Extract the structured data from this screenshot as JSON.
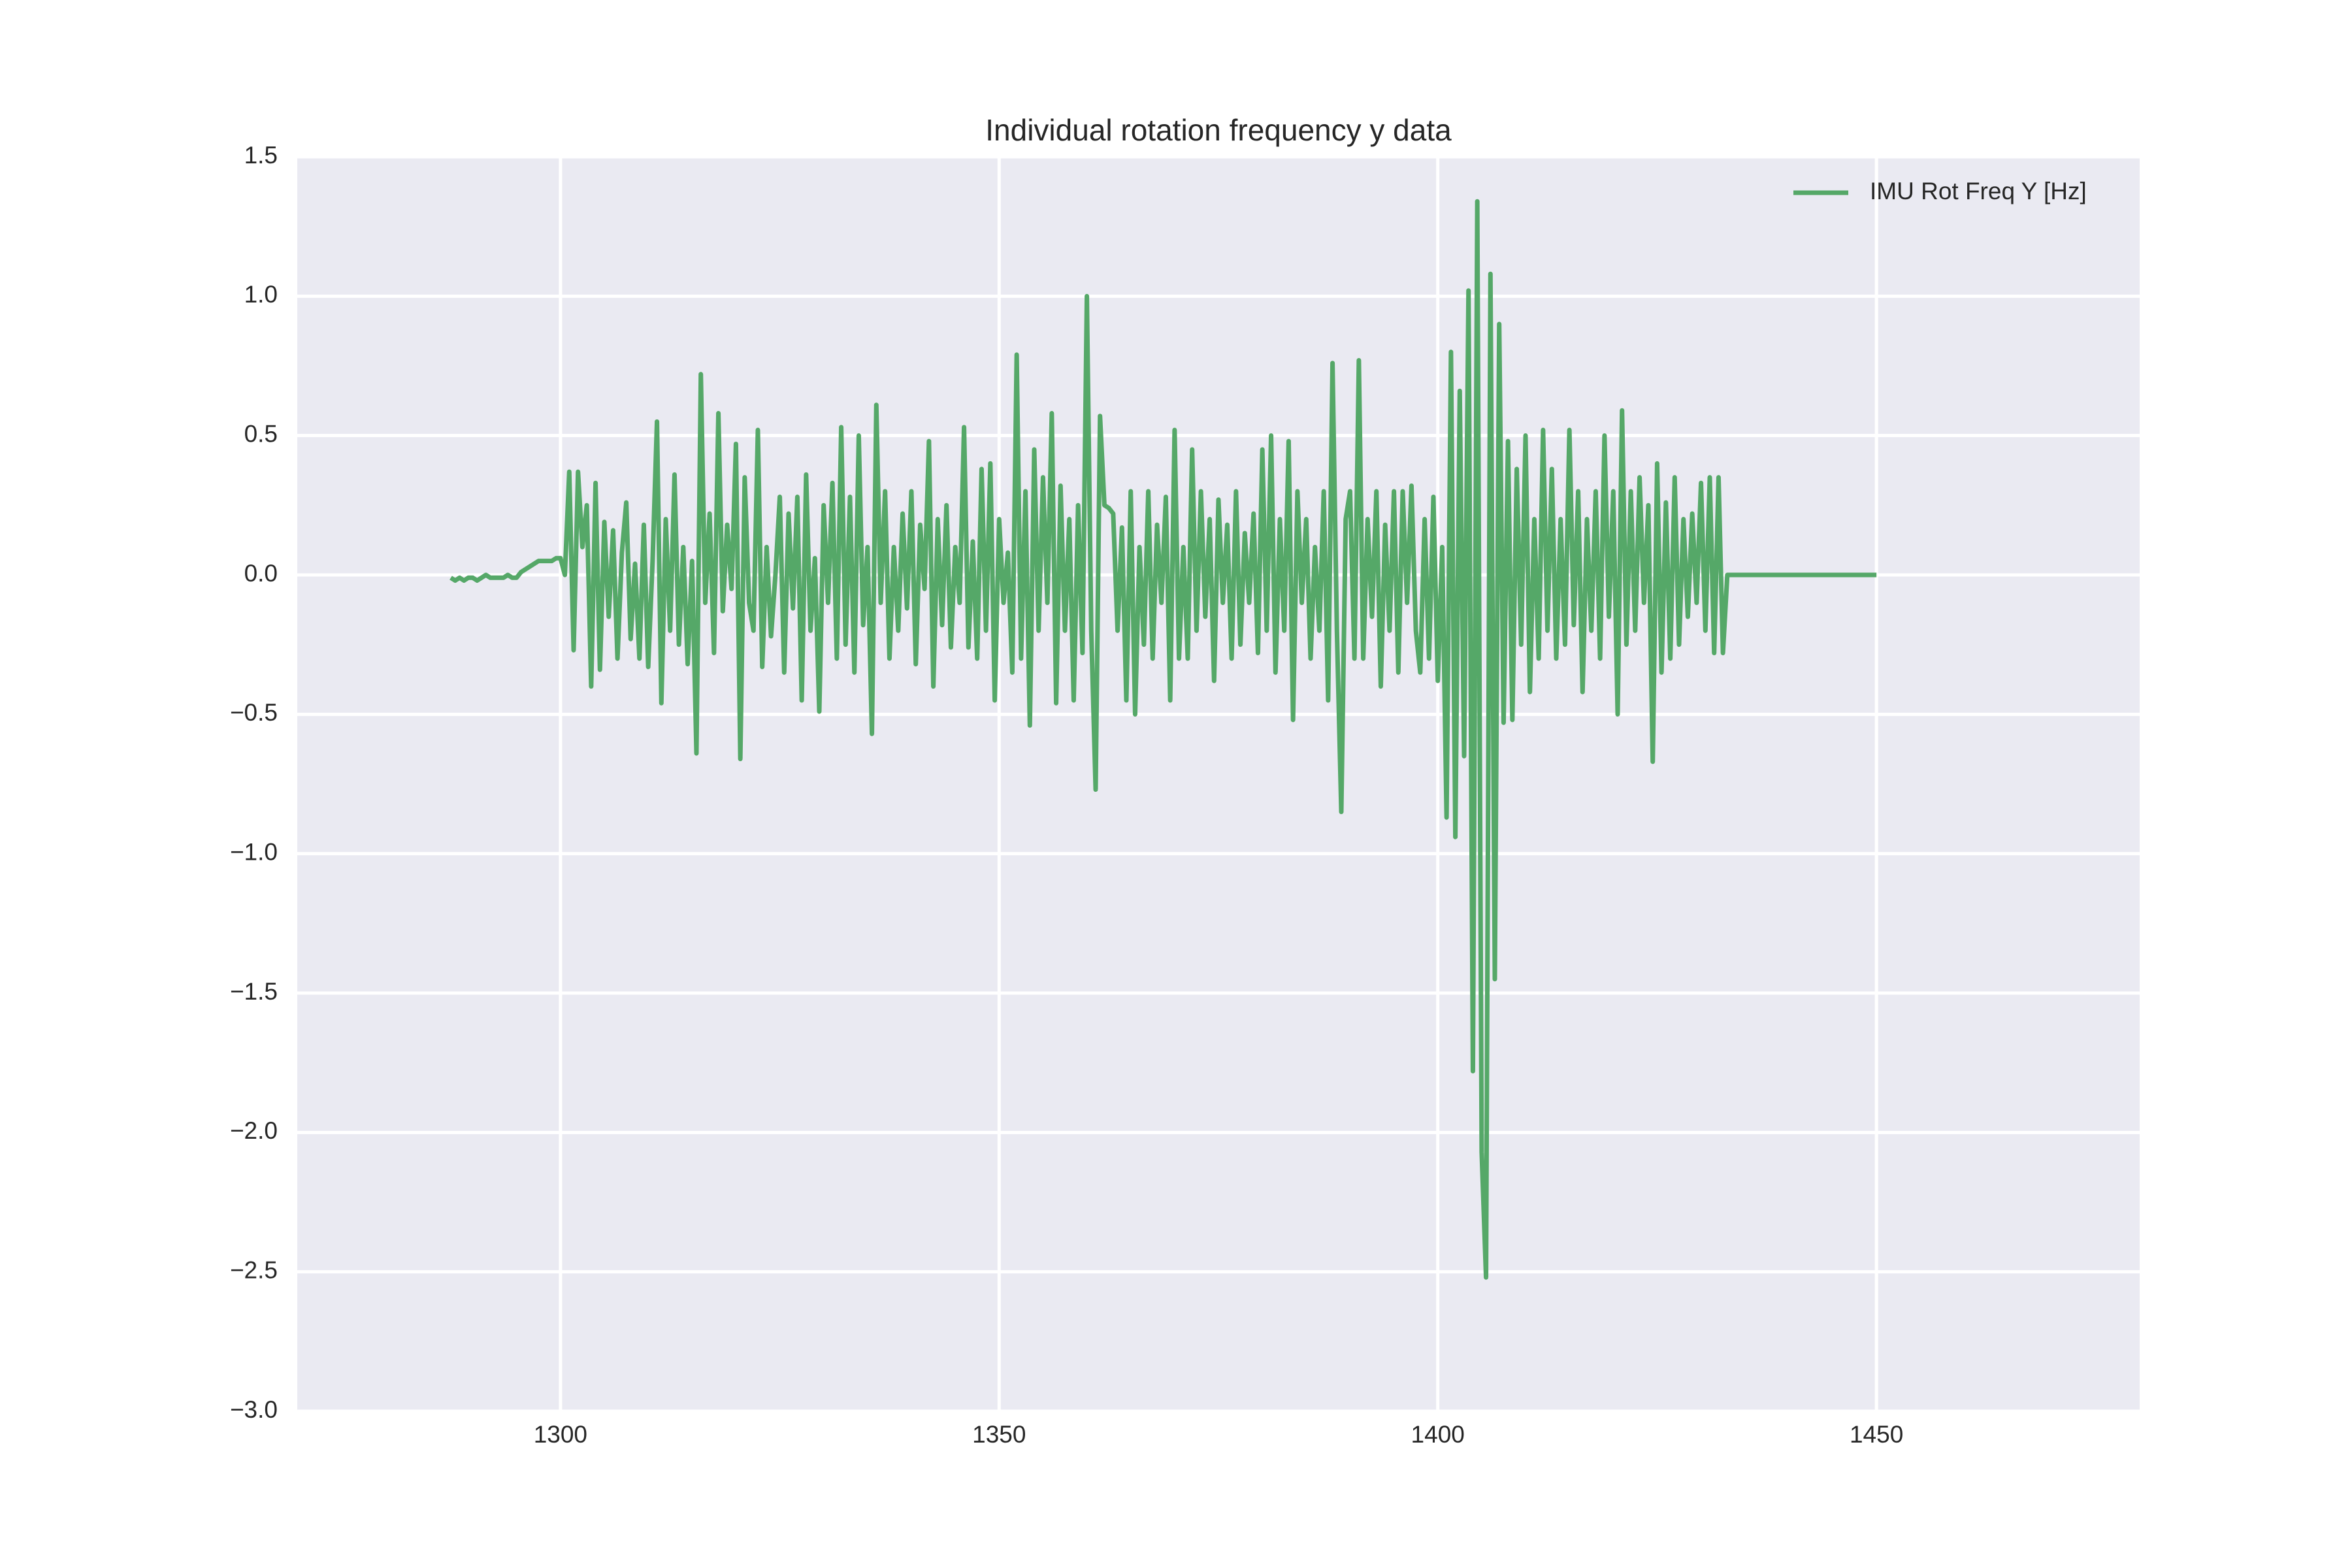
{
  "chart_data": {
    "type": "line",
    "title": "Individual rotation frequency y data",
    "x": [
      1287.5,
      1288,
      1288.5,
      1289,
      1289.5,
      1290,
      1290.5,
      1291,
      1291.5,
      1292,
      1292.5,
      1293,
      1293.5,
      1294,
      1294.5,
      1295,
      1295.5,
      1296,
      1296.5,
      1297,
      1297.5,
      1298,
      1298.5,
      1299,
      1299.5,
      1300,
      1300.5,
      1301,
      1301.5,
      1302,
      1302.5,
      1303,
      1303.5,
      1304,
      1304.5,
      1305,
      1305.5,
      1306,
      1306.5,
      1307,
      1307.5,
      1308,
      1308.5,
      1309,
      1309.5,
      1310,
      1310.5,
      1311,
      1311.5,
      1312,
      1312.5,
      1313,
      1313.5,
      1314,
      1314.5,
      1315,
      1315.5,
      1316,
      1316.5,
      1317,
      1317.5,
      1318,
      1318.5,
      1319,
      1319.5,
      1320,
      1320.5,
      1321,
      1321.5,
      1322,
      1322.5,
      1323,
      1323.5,
      1324,
      1324.5,
      1325,
      1325.5,
      1326,
      1326.5,
      1327,
      1327.5,
      1328,
      1328.5,
      1329,
      1329.5,
      1330,
      1330.5,
      1331,
      1331.5,
      1332,
      1332.5,
      1333,
      1333.5,
      1334,
      1334.5,
      1335,
      1335.5,
      1336,
      1336.5,
      1337,
      1337.5,
      1338,
      1338.5,
      1339,
      1339.5,
      1340,
      1340.5,
      1341,
      1341.5,
      1342,
      1342.5,
      1343,
      1343.5,
      1344,
      1344.5,
      1345,
      1345.5,
      1346,
      1346.5,
      1347,
      1347.5,
      1348,
      1348.5,
      1349,
      1349.5,
      1350,
      1350.5,
      1351,
      1351.5,
      1352,
      1352.5,
      1353,
      1353.5,
      1354,
      1354.5,
      1355,
      1355.5,
      1356,
      1356.5,
      1357,
      1357.5,
      1358,
      1358.5,
      1359,
      1359.5,
      1360,
      1360.5,
      1361,
      1361.5,
      1362,
      1362.5,
      1363,
      1363.5,
      1364,
      1364.5,
      1365,
      1365.5,
      1366,
      1366.5,
      1367,
      1367.5,
      1368,
      1368.5,
      1369,
      1369.5,
      1370,
      1370.5,
      1371,
      1371.5,
      1372,
      1372.5,
      1373,
      1373.5,
      1374,
      1374.5,
      1375,
      1375.5,
      1376,
      1376.5,
      1377,
      1377.5,
      1378,
      1378.5,
      1379,
      1379.5,
      1380,
      1380.5,
      1381,
      1381.5,
      1382,
      1382.5,
      1383,
      1383.5,
      1384,
      1384.5,
      1385,
      1385.5,
      1386,
      1386.5,
      1387,
      1387.5,
      1388,
      1388.5,
      1389,
      1389.5,
      1390,
      1390.5,
      1391,
      1391.5,
      1392,
      1392.5,
      1393,
      1393.5,
      1394,
      1394.5,
      1395,
      1395.5,
      1396,
      1396.5,
      1397,
      1397.5,
      1398,
      1398.5,
      1399,
      1399.5,
      1400,
      1400.5,
      1401,
      1401.5,
      1402,
      1402.5,
      1403,
      1403.5,
      1404,
      1404.5,
      1405,
      1405.5,
      1406,
      1406.5,
      1407,
      1407.5,
      1408,
      1408.5,
      1409,
      1409.5,
      1410,
      1410.5,
      1411,
      1411.5,
      1412,
      1412.5,
      1413,
      1413.5,
      1414,
      1414.5,
      1415,
      1415.5,
      1416,
      1416.5,
      1417,
      1417.5,
      1418,
      1418.5,
      1419,
      1419.5,
      1420,
      1420.5,
      1421,
      1421.5,
      1422,
      1422.5,
      1423,
      1423.5,
      1424,
      1424.5,
      1425,
      1425.5,
      1426,
      1426.5,
      1427,
      1427.5,
      1428,
      1428.5,
      1429,
      1429.5,
      1430,
      1430.5,
      1431,
      1431.5,
      1432,
      1432.5,
      1433,
      1440,
      1450
    ],
    "series": [
      {
        "name": "IMU Rot Freq Y [Hz]",
        "color": "#55a868",
        "values": [
          -0.01,
          -0.02,
          -0.01,
          -0.02,
          -0.01,
          -0.01,
          -0.02,
          -0.01,
          0,
          -0.01,
          -0.01,
          -0.01,
          -0.01,
          0,
          -0.01,
          -0.01,
          0.01,
          0.02,
          0.03,
          0.04,
          0.05,
          0.05,
          0.05,
          0.05,
          0.06,
          0.06,
          0.0,
          0.37,
          -0.27,
          0.37,
          0.1,
          0.25,
          -0.4,
          0.33,
          -0.34,
          0.19,
          -0.15,
          0.16,
          -0.3,
          0.08,
          0.26,
          -0.23,
          0.04,
          -0.3,
          0.18,
          -0.33,
          0.05,
          0.55,
          -0.46,
          0.2,
          -0.2,
          0.36,
          -0.25,
          0.1,
          -0.32,
          0.05,
          -0.64,
          0.72,
          -0.1,
          0.22,
          -0.28,
          0.58,
          -0.13,
          0.18,
          -0.05,
          0.47,
          -0.66,
          0.35,
          -0.1,
          -0.2,
          0.52,
          -0.33,
          0.1,
          -0.22,
          0.0,
          0.28,
          -0.35,
          0.22,
          -0.12,
          0.28,
          -0.45,
          0.36,
          -0.2,
          0.06,
          -0.49,
          0.25,
          -0.1,
          0.33,
          -0.3,
          0.53,
          -0.25,
          0.28,
          -0.35,
          0.5,
          -0.18,
          0.1,
          -0.57,
          0.61,
          -0.1,
          0.3,
          -0.3,
          0.1,
          -0.2,
          0.22,
          -0.12,
          0.3,
          -0.32,
          0.18,
          -0.05,
          0.48,
          -0.4,
          0.2,
          -0.18,
          0.25,
          -0.26,
          0.1,
          -0.1,
          0.53,
          -0.26,
          0.12,
          -0.3,
          0.38,
          -0.2,
          0.4,
          -0.45,
          0.2,
          -0.1,
          0.08,
          -0.35,
          0.79,
          -0.3,
          0.3,
          -0.54,
          0.45,
          -0.2,
          0.35,
          -0.1,
          0.58,
          -0.46,
          0.32,
          -0.2,
          0.2,
          -0.45,
          0.25,
          -0.28,
          1.0,
          -0.2,
          -0.77,
          0.57,
          0.25,
          0.24,
          0.22,
          -0.2,
          0.17,
          -0.45,
          0.3,
          -0.5,
          0.1,
          -0.25,
          0.3,
          -0.3,
          0.18,
          -0.1,
          0.28,
          -0.45,
          0.52,
          -0.3,
          0.1,
          -0.3,
          0.45,
          -0.2,
          0.3,
          -0.15,
          0.2,
          -0.38,
          0.27,
          -0.1,
          0.18,
          -0.3,
          0.3,
          -0.25,
          0.15,
          -0.1,
          0.22,
          -0.28,
          0.45,
          -0.2,
          0.5,
          -0.35,
          0.2,
          -0.2,
          0.48,
          -0.52,
          0.3,
          -0.1,
          0.2,
          -0.3,
          0.1,
          -0.2,
          0.3,
          -0.45,
          0.76,
          -0.2,
          -0.85,
          0.2,
          0.3,
          -0.3,
          0.77,
          -0.3,
          0.2,
          -0.15,
          0.3,
          -0.4,
          0.18,
          -0.2,
          0.3,
          -0.35,
          0.3,
          -0.1,
          0.32,
          -0.2,
          -0.35,
          0.2,
          -0.3,
          0.28,
          -0.38,
          0.1,
          -0.87,
          0.8,
          -0.94,
          0.66,
          -0.65,
          1.02,
          -1.78,
          1.34,
          -2.07,
          -2.52,
          1.08,
          -1.45,
          0.9,
          -0.53,
          0.48,
          -0.52,
          0.38,
          -0.25,
          0.5,
          -0.42,
          0.2,
          -0.3,
          0.52,
          -0.2,
          0.38,
          -0.3,
          0.2,
          -0.25,
          0.52,
          -0.18,
          0.3,
          -0.42,
          0.2,
          -0.2,
          0.3,
          -0.3,
          0.5,
          -0.15,
          0.3,
          -0.5,
          0.59,
          -0.25,
          0.3,
          -0.2,
          0.35,
          -0.1,
          0.25,
          -0.67,
          0.4,
          -0.35,
          0.26,
          -0.3,
          0.35,
          -0.25,
          0.2,
          -0.15,
          0.22,
          -0.1,
          0.33,
          -0.2,
          0.35,
          -0.28,
          0.35,
          -0.28,
          0,
          0,
          0
        ]
      }
    ],
    "xlim": [
      1270,
      1480
    ],
    "ylim": [
      -3.0,
      1.5
    ],
    "xticks": [
      1300,
      1350,
      1400,
      1450
    ],
    "yticks": [
      {
        "value": -3.0,
        "label": "−3.0"
      },
      {
        "value": -2.5,
        "label": "−2.5"
      },
      {
        "value": -2.0,
        "label": "−2.0"
      },
      {
        "value": -1.5,
        "label": "−1.5"
      },
      {
        "value": -1.0,
        "label": "−1.0"
      },
      {
        "value": -0.5,
        "label": "−0.5"
      },
      {
        "value": 0.0,
        "label": "0.0"
      },
      0.5,
      {
        "value": 1.0,
        "label": "1.0"
      },
      1.5
    ],
    "grid": true,
    "legend": "upper right"
  }
}
